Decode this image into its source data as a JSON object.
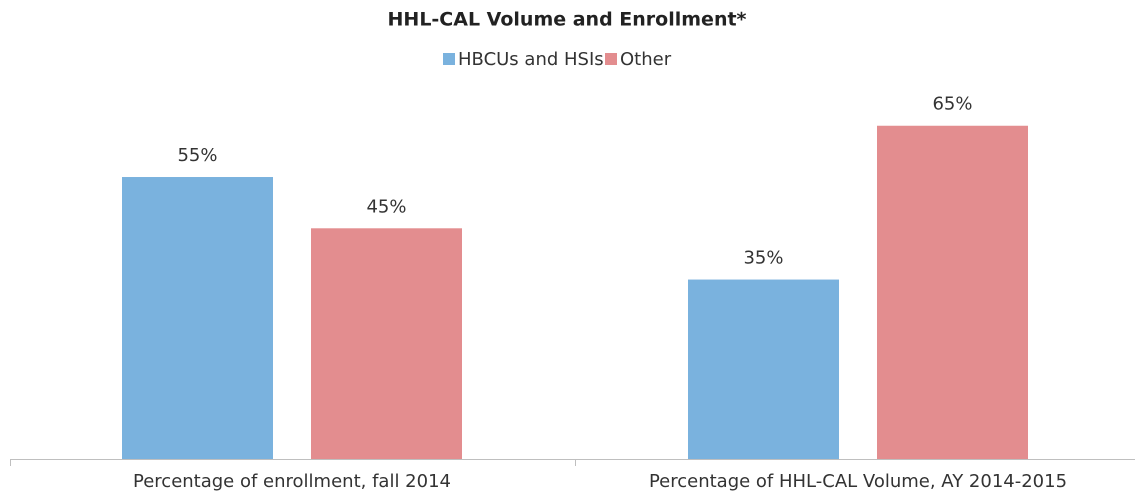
{
  "chart_data": {
    "type": "bar",
    "title": "HHL-CAL Volume and Enrollment*",
    "categories": [
      "Percentage of enrollment, fall 2014",
      "Percentage of HHL-CAL Volume, AY 2014-2015"
    ],
    "series": [
      {
        "name": "HBCUs and HSIs",
        "color": "#7ab2de",
        "values": [
          55,
          35
        ],
        "value_labels": [
          "55%",
          "35%"
        ]
      },
      {
        "name": "Other",
        "color": "#e38d8f",
        "values": [
          45,
          65
        ],
        "value_labels": [
          "45%",
          "65%"
        ]
      }
    ],
    "legend": "top"
  }
}
